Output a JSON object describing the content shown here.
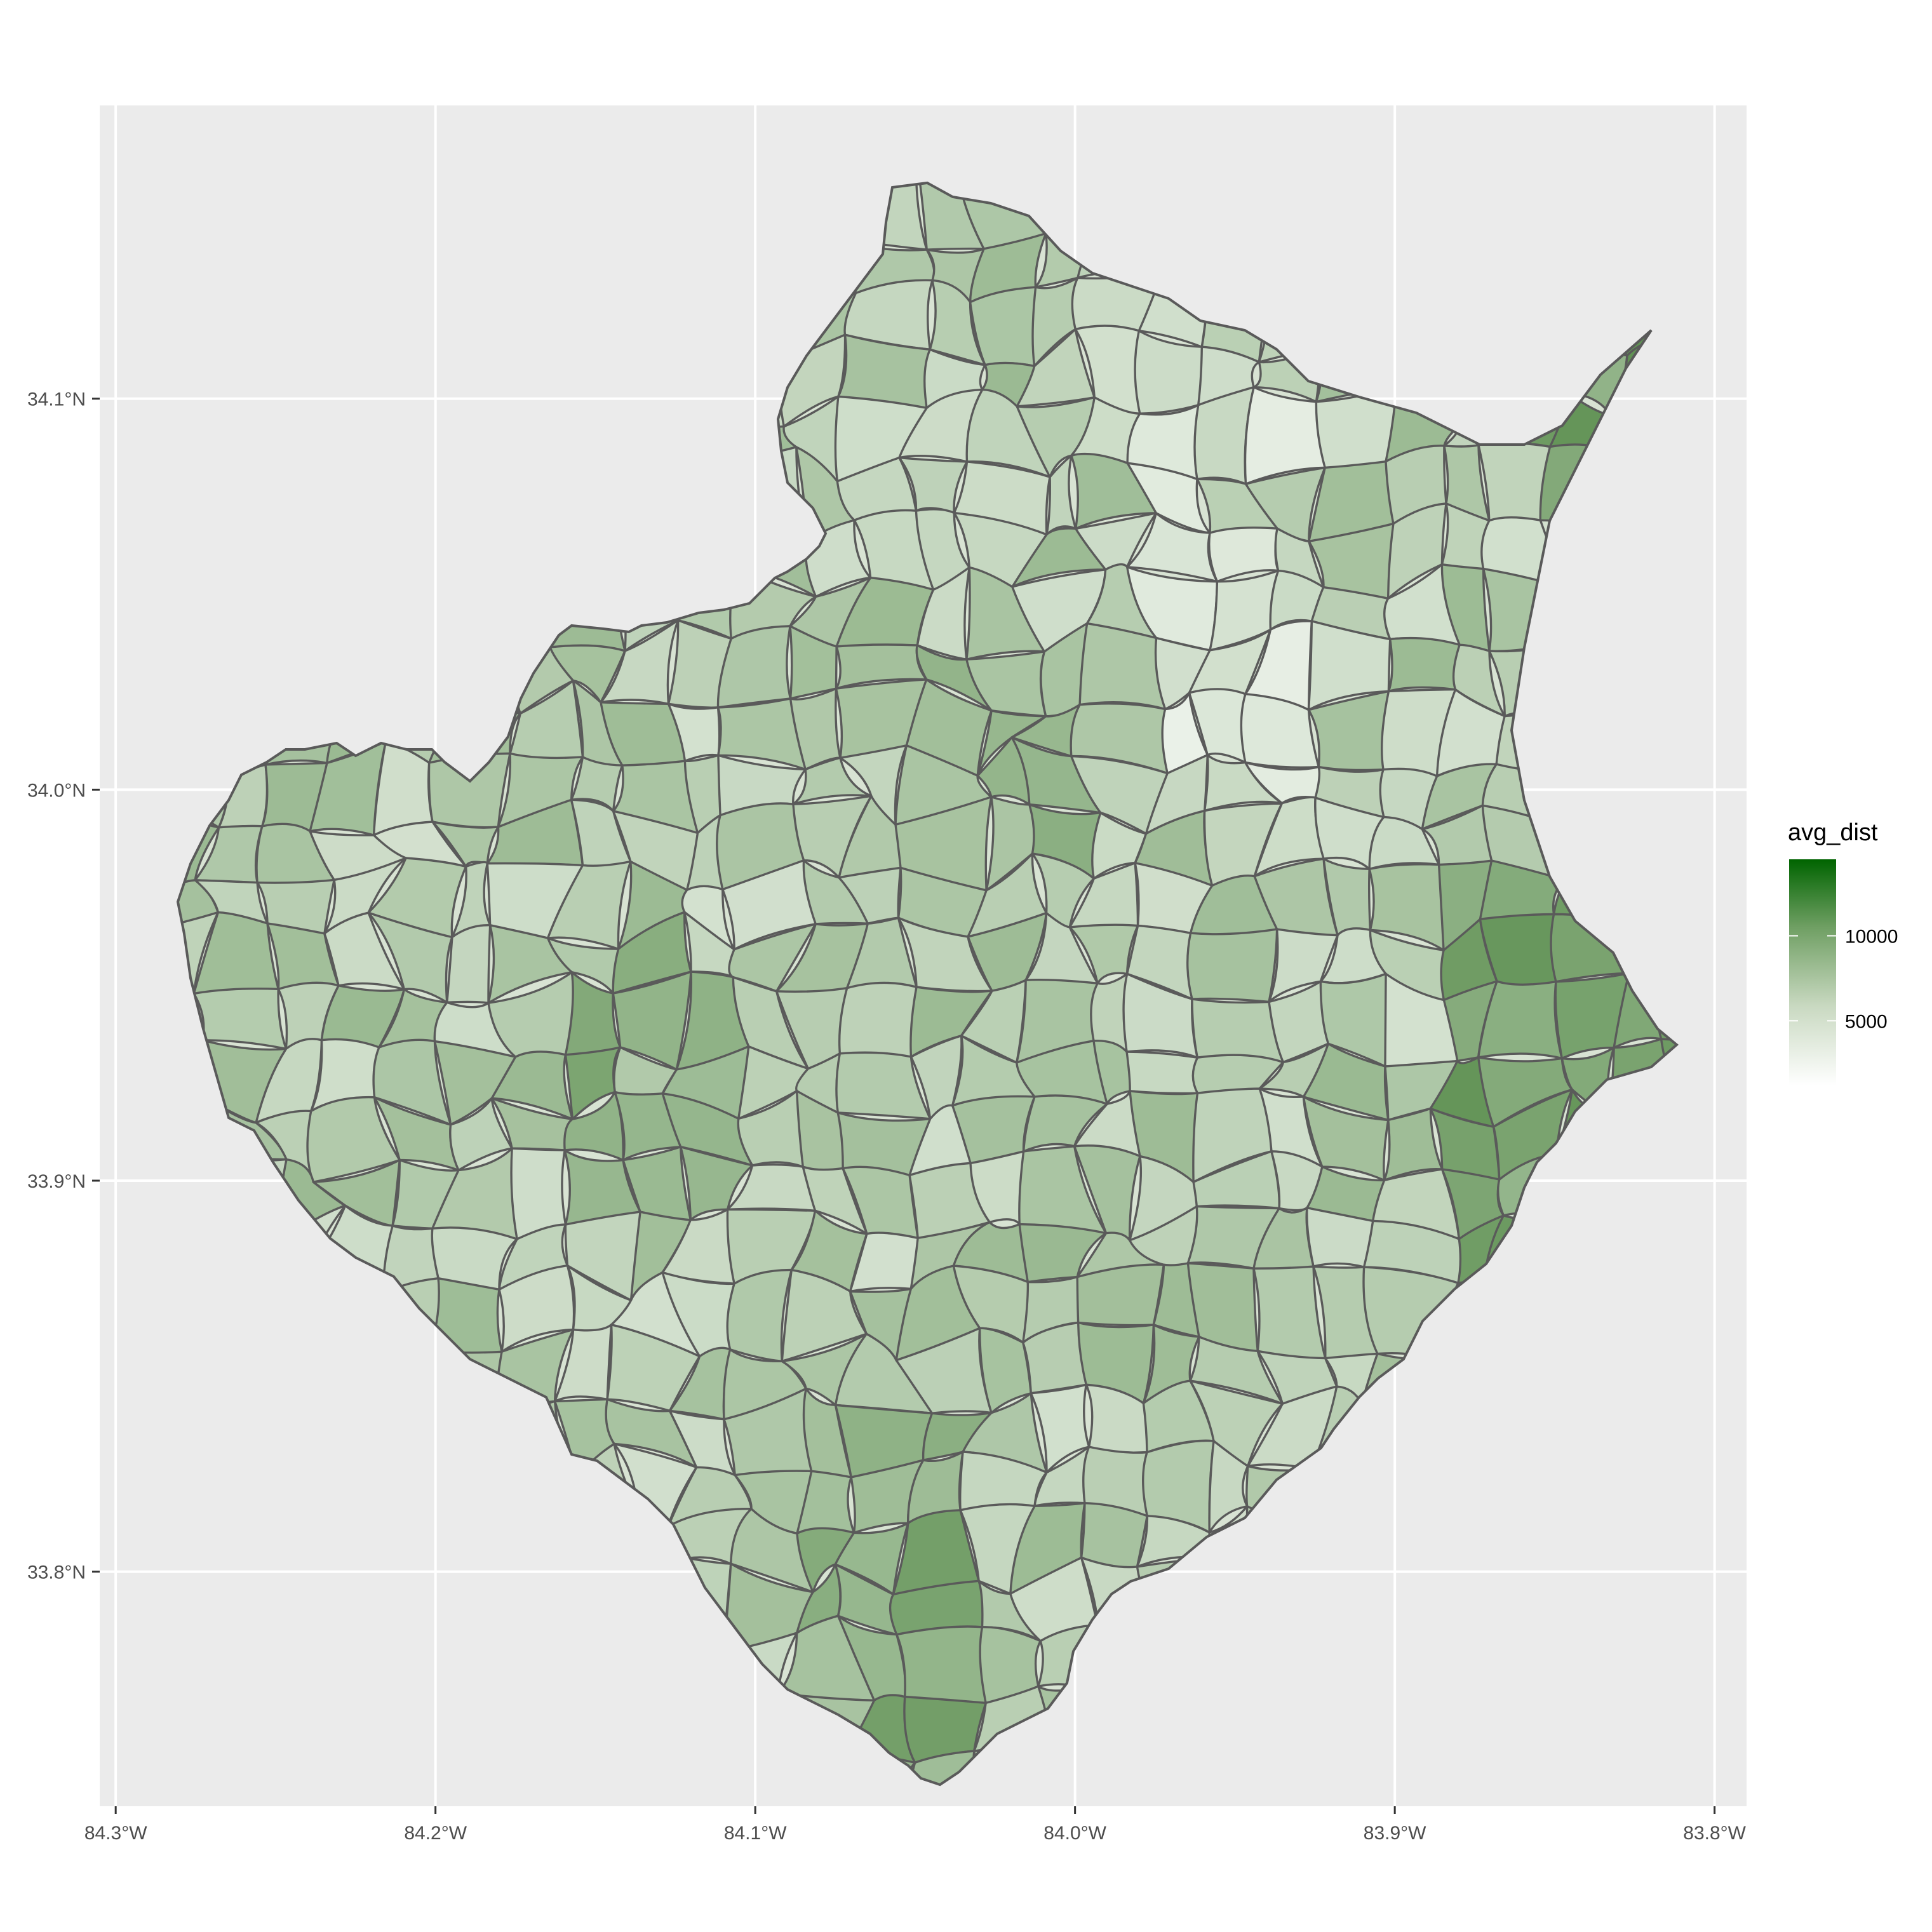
{
  "map": {
    "panel_background": "#ebebeb",
    "grid_color": "#ffffff",
    "outline_color": "#5a5a5a",
    "longitude_range": [
      -84.305,
      -83.79
    ],
    "latitude_range": [
      33.74,
      34.175
    ],
    "x_axis": {
      "ticks": [
        {
          "value": -84.3,
          "label": "84.3°W"
        },
        {
          "value": -84.2,
          "label": "84.2°W"
        },
        {
          "value": -84.1,
          "label": "84.1°W"
        },
        {
          "value": -84.0,
          "label": "84.0°W"
        },
        {
          "value": -83.9,
          "label": "83.9°W"
        },
        {
          "value": -83.8,
          "label": "83.8°W"
        }
      ]
    },
    "y_axis": {
      "ticks": [
        {
          "value": 34.1,
          "label": "34.1°N"
        },
        {
          "value": 34.0,
          "label": "34.0°N"
        },
        {
          "value": 33.9,
          "label": "33.9°N"
        },
        {
          "value": 33.8,
          "label": "33.8°N"
        }
      ]
    }
  },
  "legend": {
    "title": "avg_dist",
    "color_low": "#ffffff",
    "color_high": "#006400",
    "range": [
      1200,
      14500
    ],
    "breaks": [
      {
        "value": 10000,
        "label": "10000"
      },
      {
        "value": 5000,
        "label": "5000"
      }
    ]
  }
}
